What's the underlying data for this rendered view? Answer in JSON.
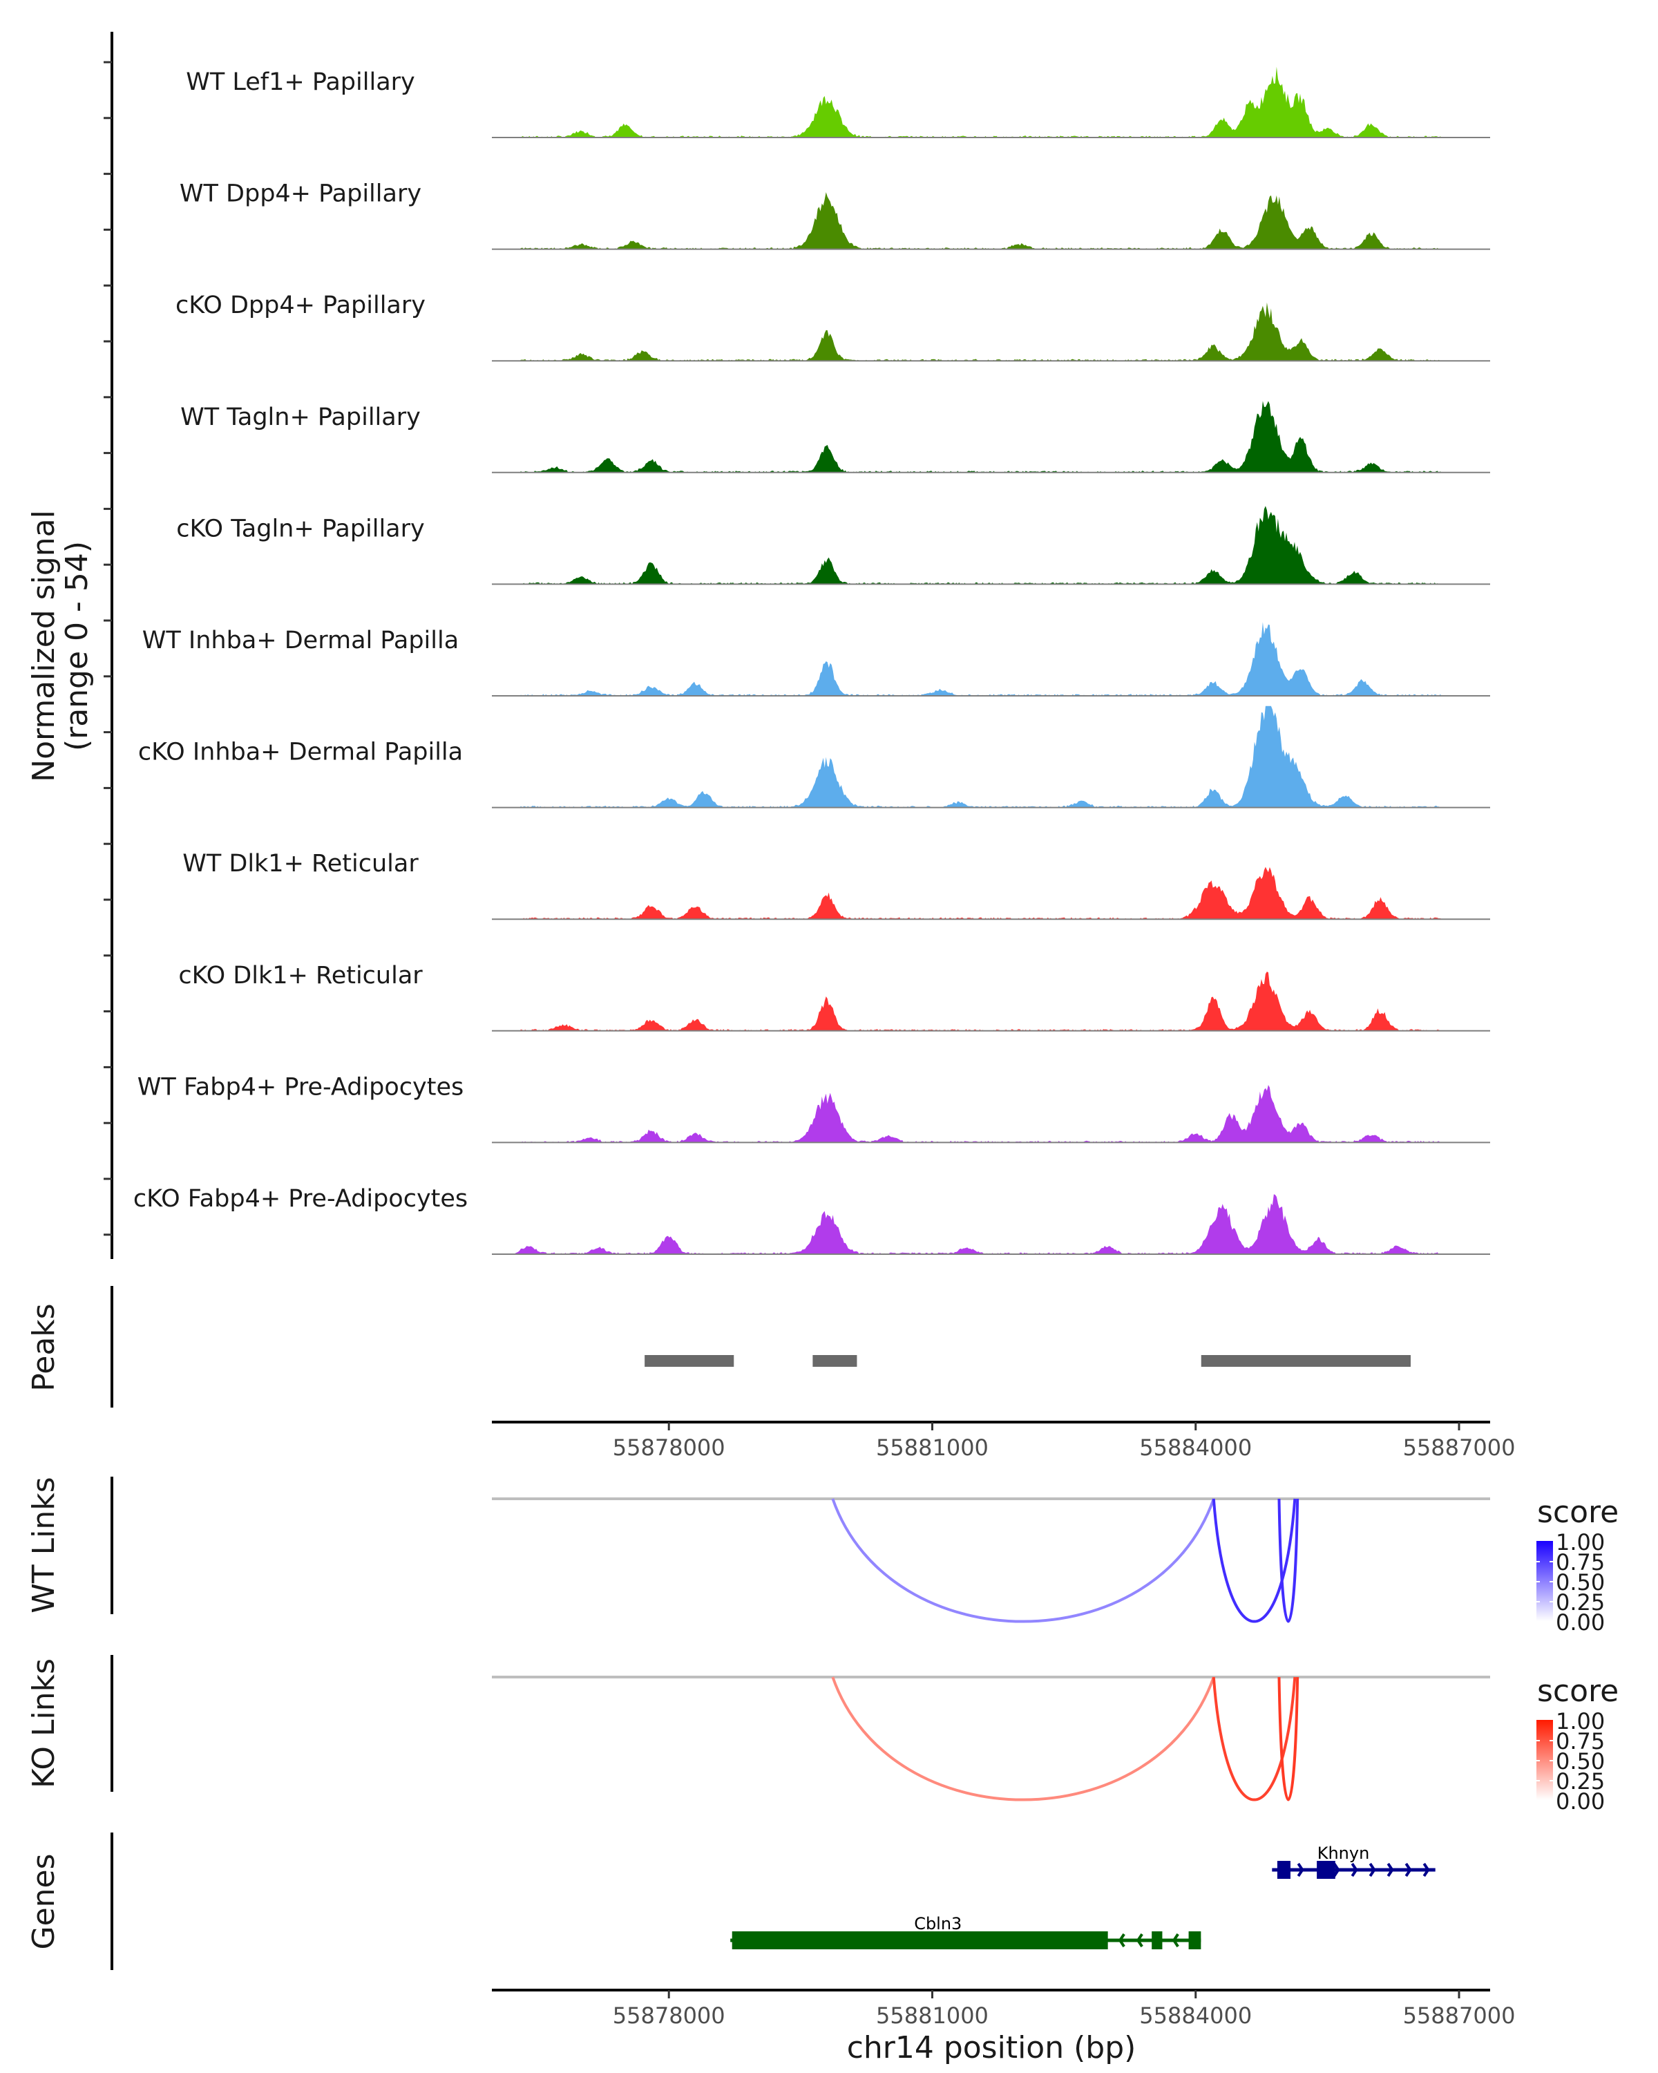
{
  "chart_data": {
    "type": "area",
    "title": "",
    "ylabel": "Normalized signal\n(range 0 - 54)",
    "ylabel_lines": [
      "Normalized signal",
      "(range 0 - 54)"
    ],
    "ylim": [
      0,
      54
    ],
    "xlabel": "chr14 position (bp)",
    "xlim": [
      55875984,
      55887354
    ],
    "x_ticks": [
      55878000,
      55881000,
      55884000,
      55887000
    ],
    "x_tick_labels": [
      "55878000",
      "55881000",
      "55884000",
      "55887000"
    ],
    "tracks": [
      {
        "name": "WT Lef1+ Papillary",
        "color": "#66CC00",
        "peaks": [
          [
            55877000,
            4
          ],
          [
            55877500,
            8
          ],
          [
            55879800,
            28
          ],
          [
            55884300,
            12
          ],
          [
            55884600,
            20
          ],
          [
            55884900,
            45
          ],
          [
            55885200,
            25
          ],
          [
            55885500,
            6
          ],
          [
            55886000,
            9
          ]
        ]
      },
      {
        "name": "WT Dpp4+ Papillary",
        "color": "#4A8B00",
        "peaks": [
          [
            55877000,
            3
          ],
          [
            55877600,
            5
          ],
          [
            55879800,
            35
          ],
          [
            55882000,
            3
          ],
          [
            55884300,
            14
          ],
          [
            55884900,
            38
          ],
          [
            55885300,
            15
          ],
          [
            55886000,
            10
          ]
        ]
      },
      {
        "name": "cKO Dpp4+ Papillary",
        "color": "#4A8B00",
        "peaks": [
          [
            55877000,
            4
          ],
          [
            55877700,
            6
          ],
          [
            55879800,
            20
          ],
          [
            55884200,
            10
          ],
          [
            55884800,
            36
          ],
          [
            55885200,
            14
          ],
          [
            55886100,
            8
          ]
        ]
      },
      {
        "name": "WT Tagln+ Papillary",
        "color": "#006400",
        "peaks": [
          [
            55876700,
            3
          ],
          [
            55877300,
            9
          ],
          [
            55877800,
            8
          ],
          [
            55879800,
            18
          ],
          [
            55884300,
            8
          ],
          [
            55884800,
            50
          ],
          [
            55885200,
            22
          ],
          [
            55886000,
            6
          ]
        ]
      },
      {
        "name": "cKO Tagln+ Papillary",
        "color": "#006400",
        "peaks": [
          [
            55877000,
            5
          ],
          [
            55877800,
            14
          ],
          [
            55879800,
            17
          ],
          [
            55884200,
            9
          ],
          [
            55884800,
            52
          ],
          [
            55885100,
            26
          ],
          [
            55885800,
            8
          ]
        ]
      },
      {
        "name": "WT Inhba+ Dermal Papilla",
        "color": "#5DADEC",
        "peaks": [
          [
            55877100,
            3
          ],
          [
            55877800,
            6
          ],
          [
            55878300,
            8
          ],
          [
            55879800,
            24
          ],
          [
            55881100,
            4
          ],
          [
            55884200,
            9
          ],
          [
            55884800,
            48
          ],
          [
            55885200,
            20
          ],
          [
            55885900,
            10
          ]
        ]
      },
      {
        "name": "cKO Inhba+ Dermal Papilla",
        "color": "#5DADEC",
        "peaks": [
          [
            55878000,
            6
          ],
          [
            55878400,
            11
          ],
          [
            55879800,
            32
          ],
          [
            55881300,
            3
          ],
          [
            55882700,
            4
          ],
          [
            55884200,
            12
          ],
          [
            55884800,
            72
          ],
          [
            55885100,
            30
          ],
          [
            55885700,
            8
          ]
        ]
      },
      {
        "name": "WT Dlk1+ Reticular",
        "color": "#FF3333",
        "peaks": [
          [
            55877800,
            9
          ],
          [
            55878300,
            9
          ],
          [
            55879800,
            17
          ],
          [
            55884200,
            26
          ],
          [
            55884800,
            36
          ],
          [
            55885300,
            14
          ],
          [
            55886100,
            14
          ]
        ]
      },
      {
        "name": "cKO Dlk1+ Reticular",
        "color": "#FF3333",
        "peaks": [
          [
            55876800,
            4
          ],
          [
            55877800,
            7
          ],
          [
            55878300,
            7
          ],
          [
            55879800,
            21
          ],
          [
            55884200,
            22
          ],
          [
            55884800,
            38
          ],
          [
            55885300,
            14
          ],
          [
            55886100,
            14
          ]
        ]
      },
      {
        "name": "WT Fabp4+ Pre-Adipocytes",
        "color": "#B13CEB",
        "peaks": [
          [
            55877100,
            3
          ],
          [
            55877800,
            8
          ],
          [
            55878300,
            6
          ],
          [
            55879800,
            32
          ],
          [
            55880500,
            4
          ],
          [
            55884000,
            6
          ],
          [
            55884400,
            19
          ],
          [
            55884800,
            37
          ],
          [
            55885200,
            13
          ],
          [
            55886000,
            5
          ]
        ]
      },
      {
        "name": "cKO Fabp4+ Pre-Adipocytes",
        "color": "#B13CEB",
        "peaks": [
          [
            55876400,
            5
          ],
          [
            55877200,
            4
          ],
          [
            55878000,
            13
          ],
          [
            55879800,
            28
          ],
          [
            55881400,
            4
          ],
          [
            55883000,
            5
          ],
          [
            55884300,
            31
          ],
          [
            55884900,
            38
          ],
          [
            55885400,
            10
          ],
          [
            55886300,
            5
          ]
        ]
      }
    ],
    "peaks_track": {
      "label": "Peaks",
      "color": "#696969",
      "regions": [
        [
          55877724,
          55878740
        ],
        [
          55879638,
          55880142
        ],
        [
          55884063,
          55886449
        ]
      ]
    },
    "links": [
      {
        "label": "WT Links",
        "color_high": "#1A00FF",
        "items": [
          {
            "start": 55879866,
            "end": 55884205,
            "score": 0.25
          },
          {
            "start": 55884205,
            "end": 55885130,
            "score": 0.75
          },
          {
            "start": 55884950,
            "end": 55885160,
            "score": 0.75
          }
        ]
      },
      {
        "label": "KO Links",
        "color_high": "#FF1A00",
        "items": [
          {
            "start": 55879866,
            "end": 55884205,
            "score": 0.3
          },
          {
            "start": 55884205,
            "end": 55885130,
            "score": 0.75
          },
          {
            "start": 55884950,
            "end": 55885160,
            "score": 0.8
          }
        ]
      }
    ],
    "legend": {
      "title": "score",
      "ticks": [
        "1.00",
        "0.75",
        "0.50",
        "0.25",
        "0.00"
      ],
      "placement": "right"
    },
    "genes": {
      "label": "Genes",
      "items": [
        {
          "name": "Khnyn",
          "start": 55884870,
          "end": 55886730,
          "strand": "+",
          "color": "#00008B",
          "exons": [
            [
              55884930,
              55885080
            ],
            [
              55885380,
              55885590
            ]
          ]
        },
        {
          "name": "Cbln3",
          "start": 55878700,
          "end": 55884060,
          "strand": "-",
          "color": "#006400",
          "exons": [
            [
              55878720,
              55883000
            ],
            [
              55883500,
              55883620
            ],
            [
              55883920,
              55884060
            ]
          ]
        }
      ]
    }
  }
}
